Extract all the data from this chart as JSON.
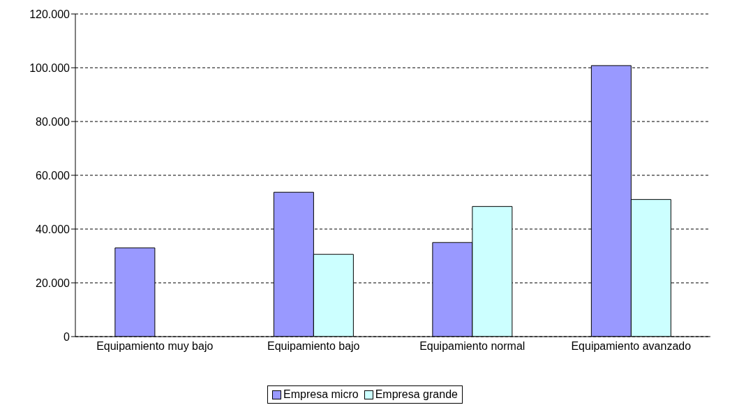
{
  "chart_data": {
    "type": "bar",
    "categories": [
      "Equipamiento muy bajo",
      "Equipamiento bajo",
      "Equipamiento normal",
      "Equipamiento avanzado"
    ],
    "series": [
      {
        "name": "Empresa micro",
        "color": "#9999ff",
        "values": [
          33000,
          53700,
          35000,
          100800
        ]
      },
      {
        "name": "Empresa grande",
        "color": "#ccffff",
        "values": [
          null,
          30600,
          48400,
          51000
        ]
      }
    ],
    "ylim": [
      0,
      120000
    ],
    "yticks": [
      0,
      {
        "value": 20000,
        "label": "20.000"
      },
      {
        "value": 40000,
        "label": "40.000"
      },
      {
        "value": 60000,
        "label": "60.000"
      },
      {
        "value": 80000,
        "label": "80.000"
      },
      {
        "value": 100000,
        "label": "100.000"
      },
      {
        "value": 120000,
        "label": "120.000"
      }
    ],
    "grid": "y",
    "legend": "bottom"
  }
}
